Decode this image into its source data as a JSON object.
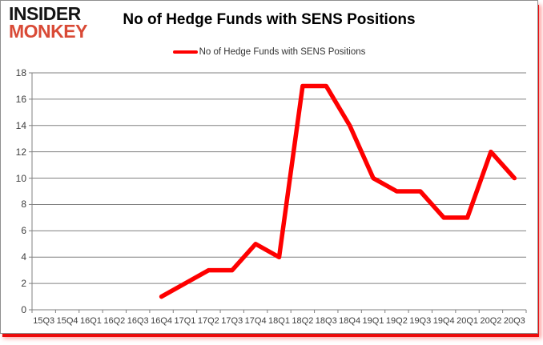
{
  "logo": {
    "line1": "INSIDER",
    "line2": "MONKEY"
  },
  "header": {
    "title": "No of Hedge Funds with SENS Positions"
  },
  "legend": {
    "label": "No of Hedge Funds with SENS Positions"
  },
  "colors": {
    "line": "#fe0000",
    "grid": "#808080",
    "axis": "#808080",
    "tick": "#808080",
    "label_text": "#3d3d3d",
    "title_text": "#000000",
    "logo_black": "#141414",
    "logo_red": "#d94a36",
    "shadow_red": "#ec0b0b"
  },
  "chart_data": {
    "type": "line",
    "title": "No of Hedge Funds with SENS Positions",
    "categories": [
      "15Q3",
      "15Q4",
      "16Q1",
      "16Q2",
      "16Q3",
      "16Q4",
      "17Q1",
      "17Q2",
      "17Q3",
      "17Q4",
      "18Q1",
      "18Q2",
      "18Q3",
      "18Q4",
      "19Q1",
      "19Q2",
      "19Q3",
      "19Q4",
      "20Q1",
      "20Q2",
      "20Q3"
    ],
    "series": [
      {
        "name": "No of Hedge Funds with SENS Positions",
        "values": [
          null,
          null,
          null,
          null,
          null,
          1,
          2,
          3,
          3,
          5,
          4,
          17,
          17,
          14,
          10,
          9,
          9,
          7,
          7,
          12,
          10
        ]
      }
    ],
    "xlabel": "",
    "ylabel": "",
    "ylim": [
      0,
      18
    ],
    "ytick_step": 2,
    "grid": true,
    "legend_position": "top-center"
  }
}
